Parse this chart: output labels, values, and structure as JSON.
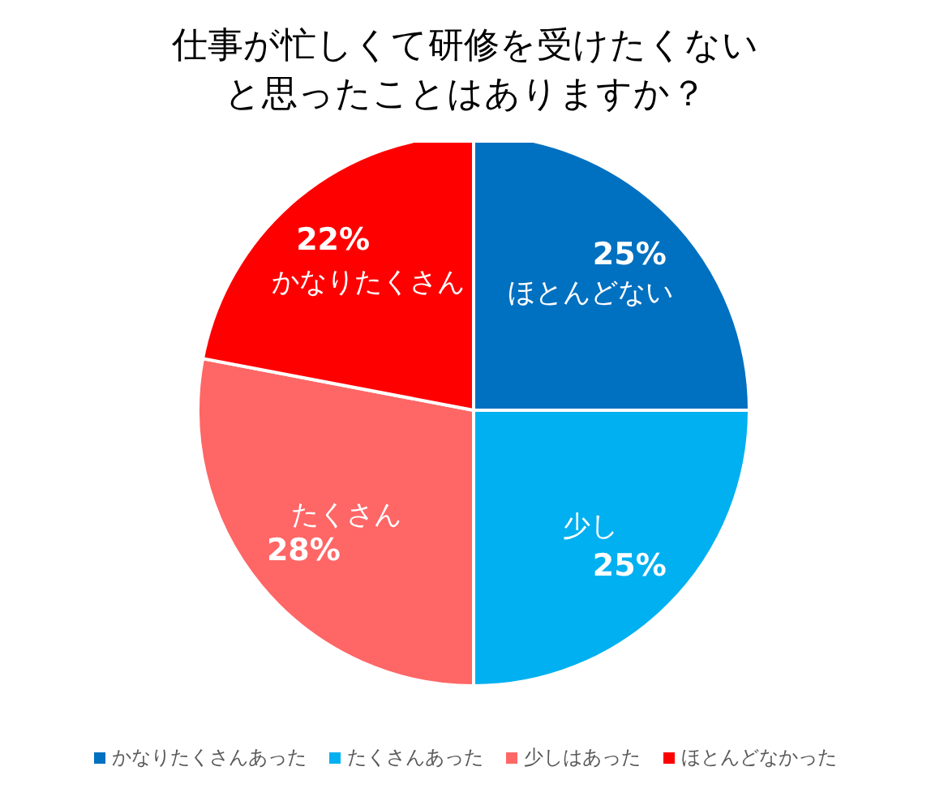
{
  "chart_data": {
    "type": "pie",
    "title": "仕事が忙しくて研修を受けたくないと思ったことはありますか？",
    "categories": [
      "かなりたくさんあった",
      "たくさんあった",
      "少しはあった",
      "ほとんどなかった"
    ],
    "values": [
      25,
      25,
      28,
      22
    ],
    "colors": [
      "#0070c0",
      "#00b0f0",
      "#ff6666",
      "#ff0000"
    ],
    "value_labels": [
      "25%",
      "25%",
      "28%",
      "22%"
    ],
    "annotations": [
      "ほとんどない",
      "少し",
      "たくさん",
      "かなりたくさん"
    ],
    "legend": "bottom"
  }
}
